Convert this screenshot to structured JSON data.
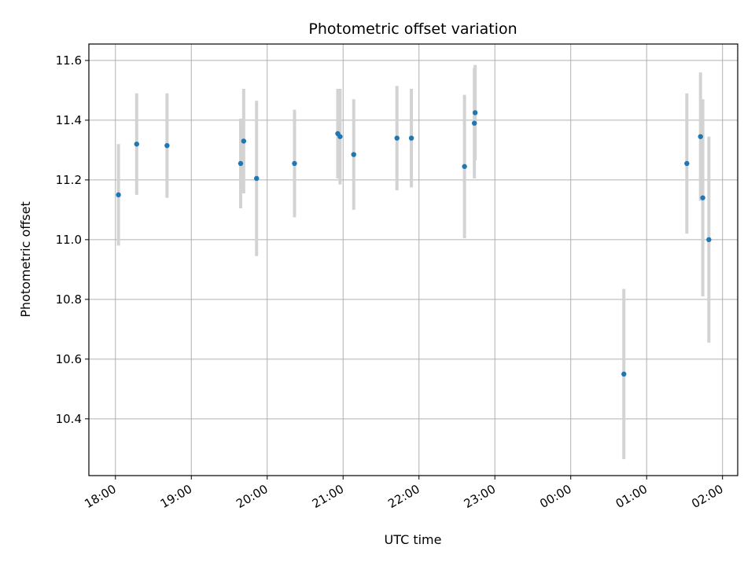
{
  "chart_data": {
    "type": "scatter",
    "title": "Photometric offset variation",
    "xlabel": "UTC time",
    "ylabel": "Photometric offset",
    "x_ticks": [
      "18:00",
      "19:00",
      "20:00",
      "21:00",
      "22:00",
      "23:00",
      "00:00",
      "01:00",
      "02:00"
    ],
    "y_ticks": [
      "10.4",
      "10.6",
      "10.8",
      "11.0",
      "11.2",
      "11.4",
      "11.6"
    ],
    "x_unit": "hours after 18:00 UTC",
    "xlim": [
      -0.35,
      8.2
    ],
    "ylim": [
      10.21,
      11.655
    ],
    "grid": true,
    "marker_color": "#1f77b4",
    "errorbar_color": "#d3d3d3",
    "points": [
      {
        "x": 0.04,
        "y": 11.15,
        "err": 0.17
      },
      {
        "x": 0.28,
        "y": 11.32,
        "err": 0.17
      },
      {
        "x": 0.68,
        "y": 11.315,
        "err": 0.175
      },
      {
        "x": 1.65,
        "y": 11.255,
        "err": 0.15
      },
      {
        "x": 1.69,
        "y": 11.33,
        "err": 0.175
      },
      {
        "x": 1.86,
        "y": 11.205,
        "err": 0.26
      },
      {
        "x": 2.36,
        "y": 11.255,
        "err": 0.18
      },
      {
        "x": 2.93,
        "y": 11.355,
        "err": 0.15
      },
      {
        "x": 2.96,
        "y": 11.345,
        "err": 0.16
      },
      {
        "x": 3.14,
        "y": 11.285,
        "err": 0.185
      },
      {
        "x": 3.71,
        "y": 11.34,
        "err": 0.175
      },
      {
        "x": 3.9,
        "y": 11.34,
        "err": 0.165
      },
      {
        "x": 4.6,
        "y": 11.245,
        "err": 0.24
      },
      {
        "x": 4.73,
        "y": 11.39,
        "err": 0.185
      },
      {
        "x": 4.74,
        "y": 11.425,
        "err": 0.16
      },
      {
        "x": 6.7,
        "y": 10.55,
        "err": 0.285
      },
      {
        "x": 7.53,
        "y": 11.255,
        "err": 0.235
      },
      {
        "x": 7.71,
        "y": 11.345,
        "err": 0.215
      },
      {
        "x": 7.74,
        "y": 11.14,
        "err": 0.33
      },
      {
        "x": 7.82,
        "y": 11.0,
        "err": 0.345
      }
    ]
  }
}
